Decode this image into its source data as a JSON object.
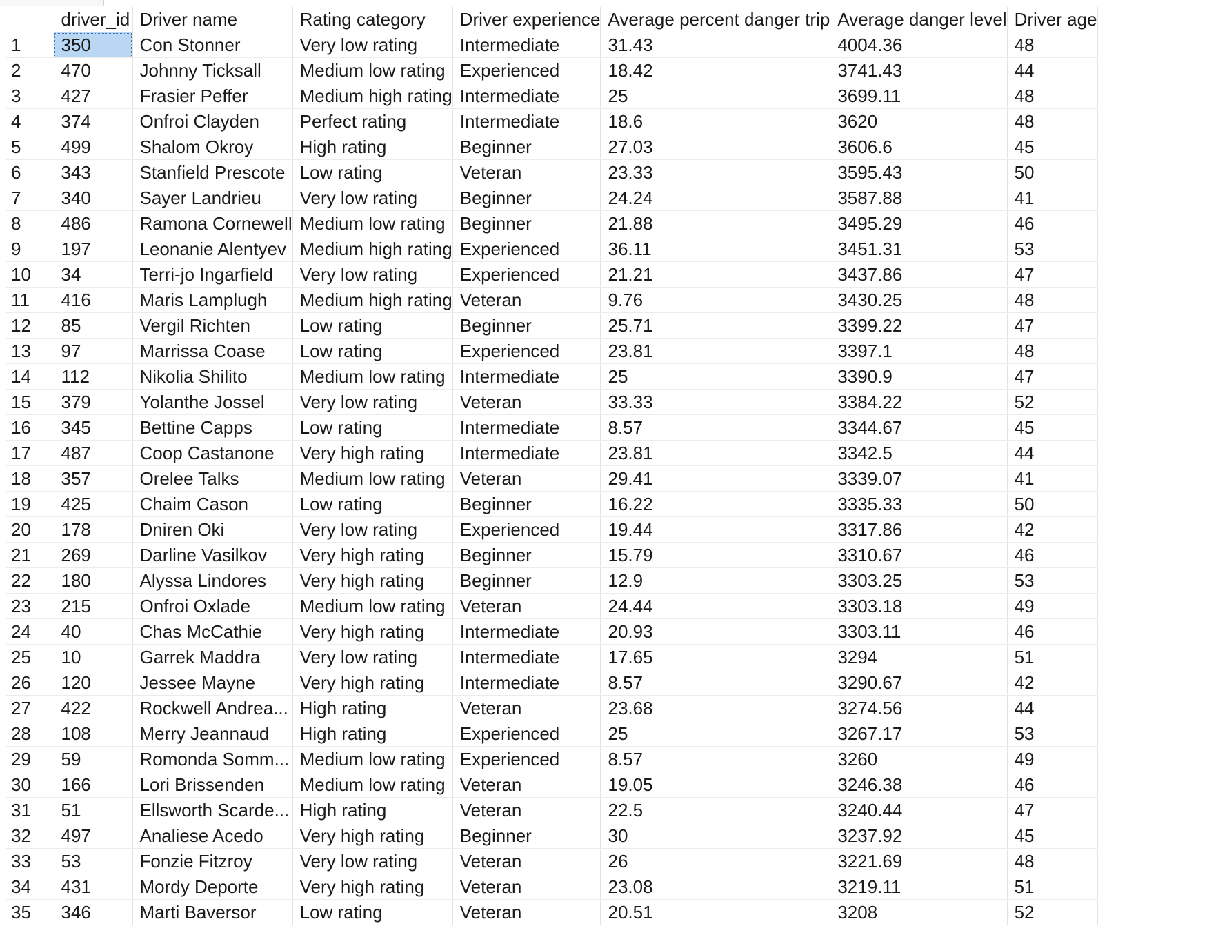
{
  "grid": {
    "columns": [
      "",
      "driver_id",
      "Driver name",
      "Rating category",
      "Driver experience",
      "Average percent danger trip",
      "Average danger level",
      "Driver age"
    ],
    "selected_cell": {
      "row": 0,
      "col": 1
    },
    "rows": [
      [
        "1",
        "350",
        "Con Stonner",
        "Very low rating",
        "Intermediate",
        "31.43",
        "4004.36",
        "48"
      ],
      [
        "2",
        "470",
        "Johnny Ticksall",
        "Medium low rating",
        "Experienced",
        "18.42",
        "3741.43",
        "44"
      ],
      [
        "3",
        "427",
        "Frasier Peffer",
        "Medium high rating",
        "Intermediate",
        "25",
        "3699.11",
        "48"
      ],
      [
        "4",
        "374",
        "Onfroi Clayden",
        "Perfect rating",
        "Intermediate",
        "18.6",
        "3620",
        "48"
      ],
      [
        "5",
        "499",
        "Shalom Okroy",
        "High rating",
        "Beginner",
        "27.03",
        "3606.6",
        "45"
      ],
      [
        "6",
        "343",
        "Stanfield Prescote",
        "Low rating",
        "Veteran",
        "23.33",
        "3595.43",
        "50"
      ],
      [
        "7",
        "340",
        "Sayer Landrieu",
        "Very low rating",
        "Beginner",
        "24.24",
        "3587.88",
        "41"
      ],
      [
        "8",
        "486",
        "Ramona Cornewell",
        "Medium low rating",
        "Beginner",
        "21.88",
        "3495.29",
        "46"
      ],
      [
        "9",
        "197",
        "Leonanie Alentyev",
        "Medium high rating",
        "Experienced",
        "36.11",
        "3451.31",
        "53"
      ],
      [
        "10",
        "34",
        "Terri-jo Ingarfield",
        "Very low rating",
        "Experienced",
        "21.21",
        "3437.86",
        "47"
      ],
      [
        "11",
        "416",
        "Maris Lamplugh",
        "Medium high rating",
        "Veteran",
        "9.76",
        "3430.25",
        "48"
      ],
      [
        "12",
        "85",
        "Vergil Richten",
        "Low rating",
        "Beginner",
        "25.71",
        "3399.22",
        "47"
      ],
      [
        "13",
        "97",
        "Marrissa Coase",
        "Low rating",
        "Experienced",
        "23.81",
        "3397.1",
        "48"
      ],
      [
        "14",
        "112",
        "Nikolia Shilito",
        "Medium low rating",
        "Intermediate",
        "25",
        "3390.9",
        "47"
      ],
      [
        "15",
        "379",
        "Yolanthe Jossel",
        "Very low rating",
        "Veteran",
        "33.33",
        "3384.22",
        "52"
      ],
      [
        "16",
        "345",
        "Bettine Capps",
        "Low rating",
        "Intermediate",
        "8.57",
        "3344.67",
        "45"
      ],
      [
        "17",
        "487",
        "Coop Castanone",
        "Very high rating",
        "Intermediate",
        "23.81",
        "3342.5",
        "44"
      ],
      [
        "18",
        "357",
        "Orelee Talks",
        "Medium low rating",
        "Veteran",
        "29.41",
        "3339.07",
        "41"
      ],
      [
        "19",
        "425",
        "Chaim Cason",
        "Low rating",
        "Beginner",
        "16.22",
        "3335.33",
        "50"
      ],
      [
        "20",
        "178",
        "Dniren Oki",
        "Very low rating",
        "Experienced",
        "19.44",
        "3317.86",
        "42"
      ],
      [
        "21",
        "269",
        "Darline Vasilkov",
        "Very high rating",
        "Beginner",
        "15.79",
        "3310.67",
        "46"
      ],
      [
        "22",
        "180",
        "Alyssa Lindores",
        "Very high rating",
        "Beginner",
        "12.9",
        "3303.25",
        "53"
      ],
      [
        "23",
        "215",
        "Onfroi Oxlade",
        "Medium low rating",
        "Veteran",
        "24.44",
        "3303.18",
        "49"
      ],
      [
        "24",
        "40",
        "Chas McCathie",
        "Very high rating",
        "Intermediate",
        "20.93",
        "3303.11",
        "46"
      ],
      [
        "25",
        "10",
        "Garrek Maddra",
        "Very low rating",
        "Intermediate",
        "17.65",
        "3294",
        "51"
      ],
      [
        "26",
        "120",
        "Jessee Mayne",
        "Very high rating",
        "Intermediate",
        "8.57",
        "3290.67",
        "42"
      ],
      [
        "27",
        "422",
        "Rockwell Andrea...",
        "High rating",
        "Veteran",
        "23.68",
        "3274.56",
        "44"
      ],
      [
        "28",
        "108",
        "Merry Jeannaud",
        "High rating",
        "Experienced",
        "25",
        "3267.17",
        "53"
      ],
      [
        "29",
        "59",
        "Romonda Somm...",
        "Medium low rating",
        "Experienced",
        "8.57",
        "3260",
        "49"
      ],
      [
        "30",
        "166",
        "Lori Brissenden",
        "Medium low rating",
        "Veteran",
        "19.05",
        "3246.38",
        "46"
      ],
      [
        "31",
        "51",
        "Ellsworth Scarde...",
        "High rating",
        "Veteran",
        "22.5",
        "3240.44",
        "47"
      ],
      [
        "32",
        "497",
        "Analiese Acedo",
        "Very high rating",
        "Beginner",
        "30",
        "3237.92",
        "45"
      ],
      [
        "33",
        "53",
        "Fonzie Fitzroy",
        "Very low rating",
        "Veteran",
        "26",
        "3221.69",
        "48"
      ],
      [
        "34",
        "431",
        "Mordy Deporte",
        "Very high rating",
        "Veteran",
        "23.08",
        "3219.11",
        "51"
      ],
      [
        "35",
        "346",
        "Marti Baversor",
        "Low rating",
        "Veteran",
        "20.51",
        "3208",
        "52"
      ]
    ]
  }
}
